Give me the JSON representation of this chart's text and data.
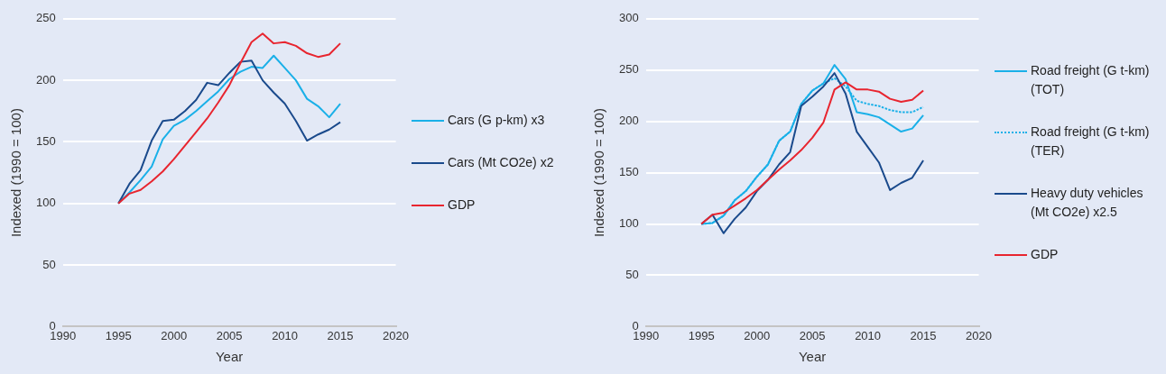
{
  "chart_data": [
    {
      "type": "line",
      "xlabel": "Year",
      "ylabel": "Indexed (1990 = 100)",
      "x": [
        1995,
        1996,
        1997,
        1998,
        1999,
        2000,
        2001,
        2002,
        2003,
        2004,
        2005,
        2006,
        2007,
        2008,
        2009,
        2010,
        2011,
        2012,
        2013,
        2014,
        2015
      ],
      "xlim": [
        1990,
        2020
      ],
      "xticks": [
        1990,
        1995,
        2000,
        2005,
        2010,
        2015,
        2020
      ],
      "ylim": [
        0,
        250
      ],
      "yticks": [
        0,
        50,
        100,
        150,
        200,
        250
      ],
      "grid": "y",
      "legend": "right",
      "marker": "none",
      "series": [
        {
          "name": "Cars (G p-km) x3",
          "color": "#1ab0e8",
          "values": [
            100,
            109,
            119,
            130,
            152,
            163,
            168,
            175,
            183,
            191,
            201,
            207,
            211,
            210,
            220,
            210,
            200,
            185,
            179,
            170,
            181
          ]
        },
        {
          "name": "Cars (Mt CO2e) x2",
          "color": "#1a4a8c",
          "values": [
            100,
            116,
            127,
            151,
            167,
            168,
            175,
            184,
            198,
            196,
            206,
            215,
            216,
            200,
            190,
            181,
            167,
            151,
            156,
            160,
            166
          ]
        },
        {
          "name": "GDP",
          "color": "#e8252f",
          "values": [
            100,
            108,
            111,
            118,
            126,
            136,
            147,
            158,
            169,
            182,
            196,
            214,
            231,
            238,
            230,
            231,
            228,
            222,
            219,
            221,
            230
          ]
        }
      ]
    },
    {
      "type": "line",
      "xlabel": "Year",
      "ylabel": "Indexed (1990 = 100)",
      "x": [
        1995,
        1996,
        1997,
        1998,
        1999,
        2000,
        2001,
        2002,
        2003,
        2004,
        2005,
        2006,
        2007,
        2008,
        2009,
        2010,
        2011,
        2012,
        2013,
        2014,
        2015
      ],
      "xlim": [
        1990,
        2020
      ],
      "xticks": [
        1990,
        1995,
        2000,
        2005,
        2010,
        2015,
        2020
      ],
      "ylim": [
        0,
        300
      ],
      "yticks": [
        0,
        50,
        100,
        150,
        200,
        250,
        300
      ],
      "grid": "y",
      "legend": "right",
      "marker": "none",
      "series": [
        {
          "name": "Road freight (G t-km) (TOT)",
          "color": "#1ab0e8",
          "values": [
            100,
            101,
            108,
            123,
            132,
            146,
            158,
            181,
            190,
            217,
            230,
            237,
            255,
            241,
            209,
            207,
            204,
            197,
            190,
            193,
            206
          ]
        },
        {
          "name": "Road freight (G t-km) (TER)",
          "color": "#1ab0e8",
          "line_style": "dotted",
          "values": [
            100,
            101,
            108,
            123,
            132,
            146,
            158,
            181,
            190,
            217,
            230,
            237,
            242,
            234,
            220,
            217,
            215,
            211,
            209,
            209,
            214
          ]
        },
        {
          "name": "Heavy duty vehicles (Mt CO2e) x2.5",
          "color": "#1a4a8c",
          "values": [
            100,
            109,
            91,
            105,
            116,
            132,
            143,
            158,
            170,
            215,
            224,
            234,
            247,
            227,
            190,
            175,
            160,
            133,
            140,
            145,
            162
          ]
        },
        {
          "name": "GDP",
          "color": "#e8252f",
          "values": [
            100,
            109,
            111,
            118,
            125,
            133,
            143,
            153,
            162,
            172,
            184,
            199,
            231,
            238,
            231,
            231,
            229,
            222,
            219,
            221,
            230
          ]
        }
      ]
    }
  ]
}
